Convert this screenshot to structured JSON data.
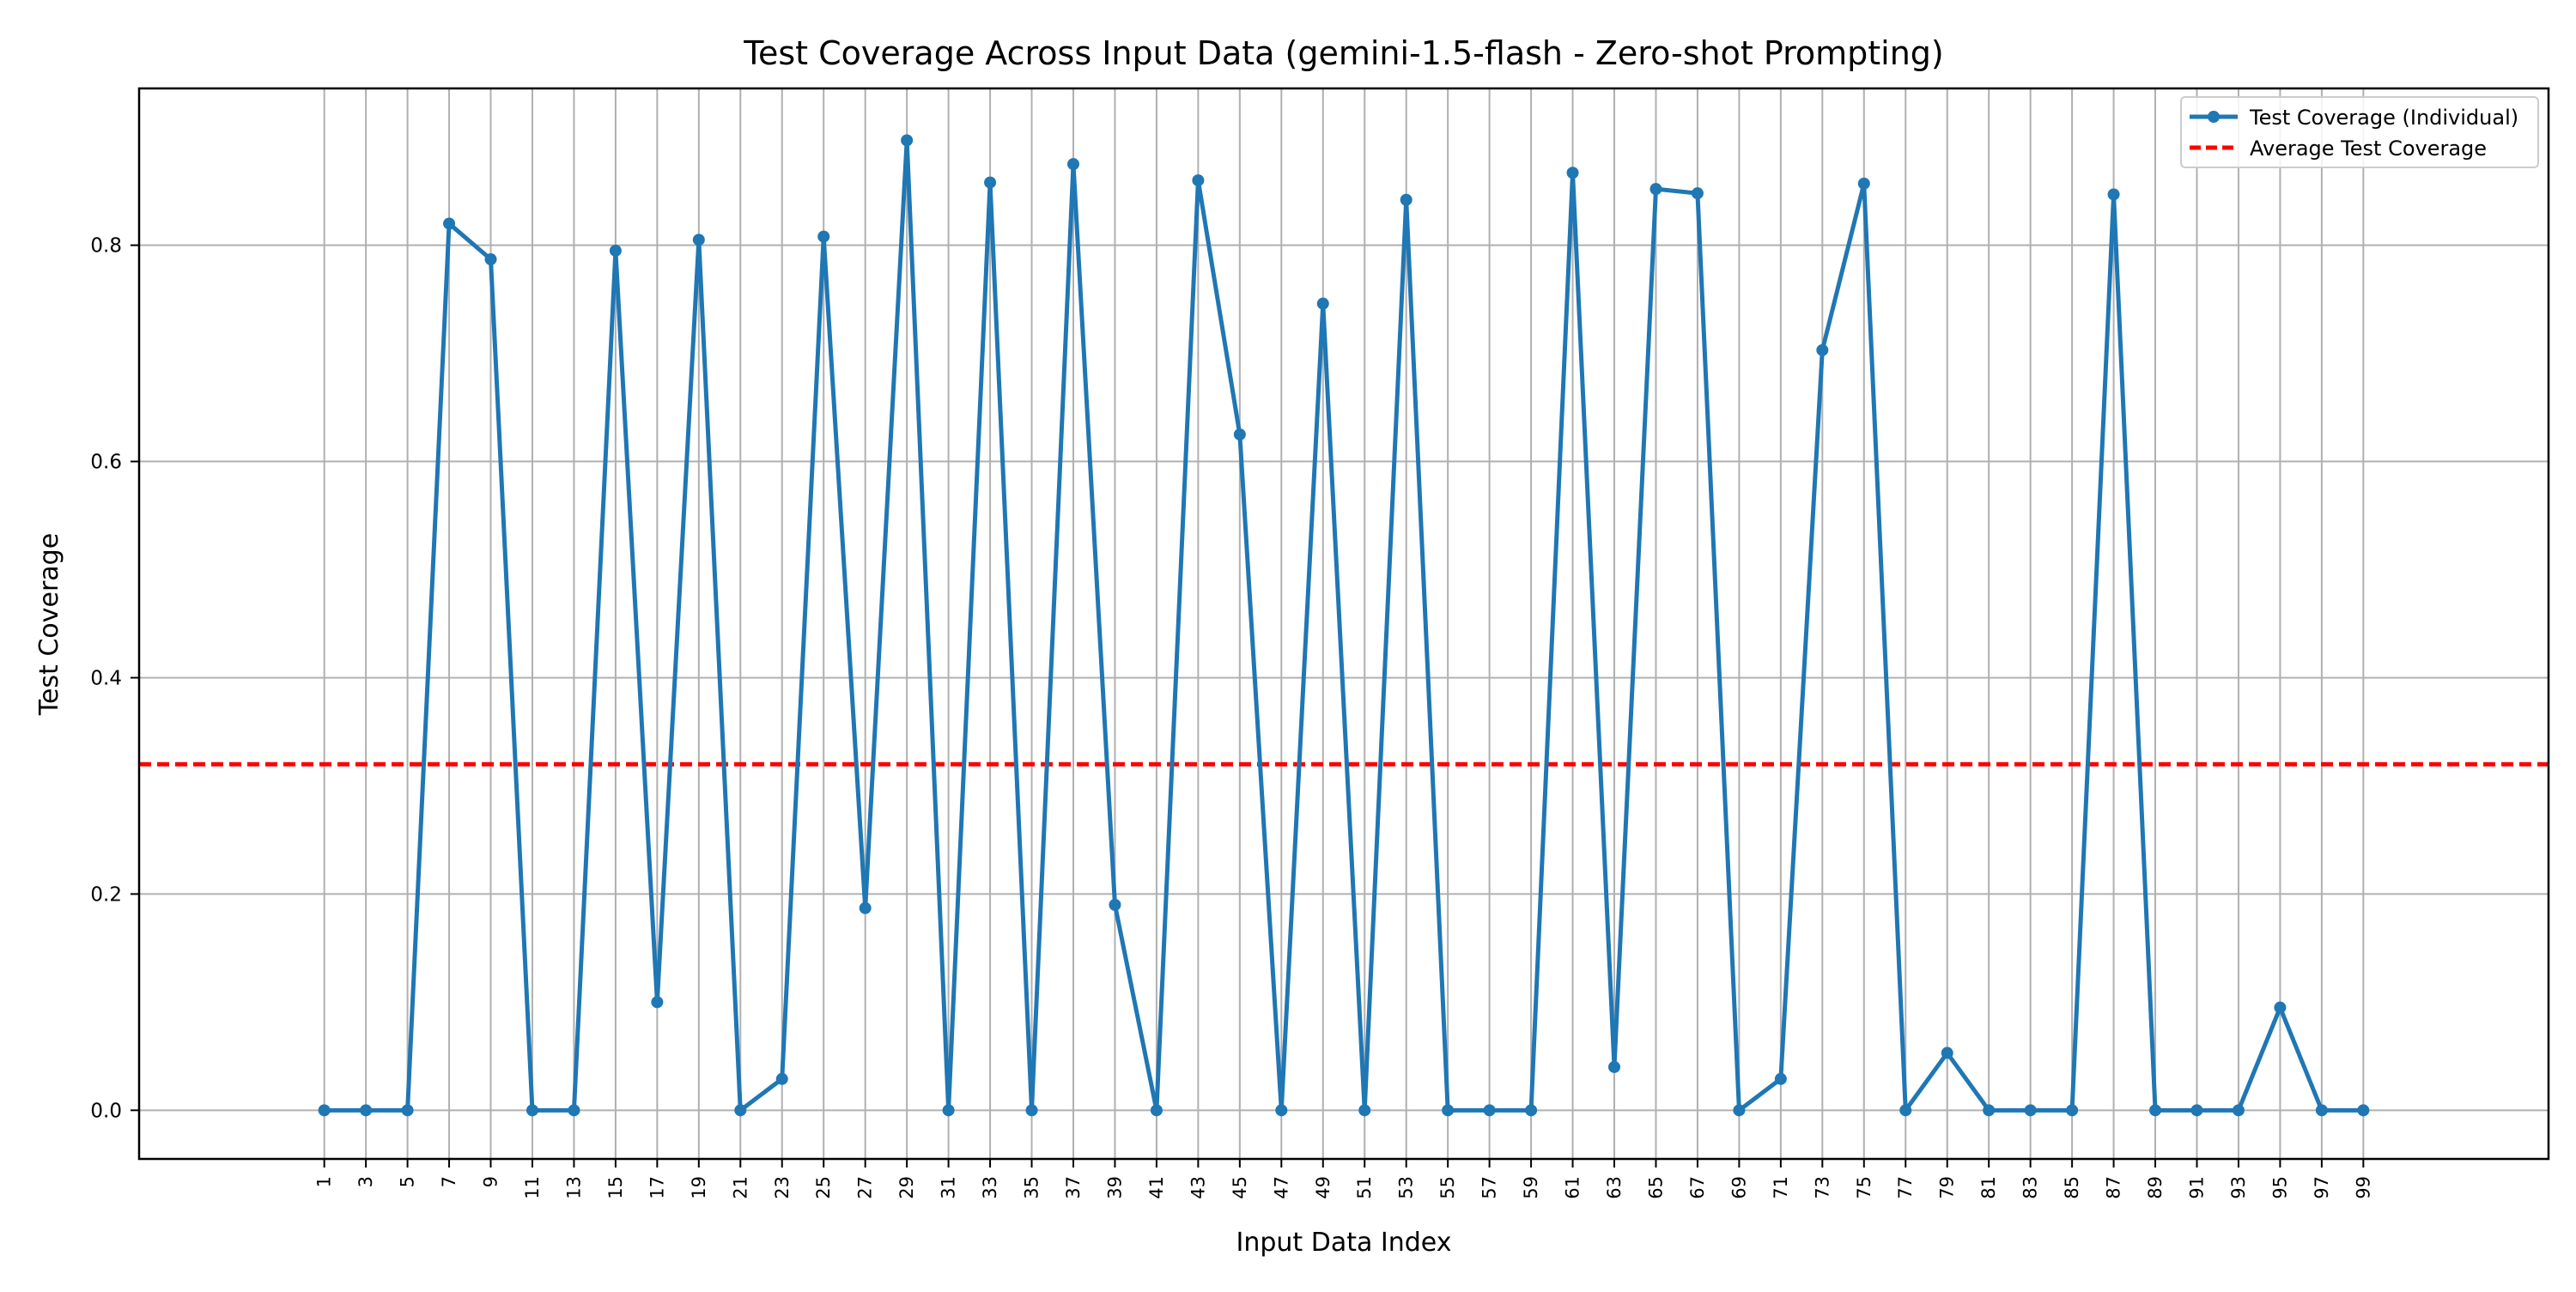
{
  "chart_data": {
    "type": "line",
    "title": "Test Coverage Across Input Data (gemini-1.5-flash - Zero-shot Prompting)",
    "xlabel": "Input Data Index",
    "ylabel": "Test Coverage",
    "x": [
      1,
      3,
      5,
      7,
      9,
      11,
      13,
      15,
      17,
      19,
      21,
      23,
      25,
      27,
      29,
      31,
      33,
      35,
      37,
      39,
      41,
      43,
      45,
      47,
      49,
      51,
      53,
      55,
      57,
      59,
      61,
      63,
      65,
      67,
      69,
      71,
      73,
      75,
      77,
      79,
      81,
      83,
      85,
      87,
      89,
      91,
      93,
      95,
      97,
      99
    ],
    "series": [
      {
        "name": "Test Coverage (Individual)",
        "color": "#1f77b4",
        "values": [
          0.0,
          0.0,
          0.0,
          0.82,
          0.787,
          0.0,
          0.0,
          0.795,
          0.1,
          0.805,
          0.0,
          0.029,
          0.808,
          0.187,
          0.897,
          0.0,
          0.858,
          0.0,
          0.875,
          0.19,
          0.0,
          0.86,
          0.625,
          0.0,
          0.746,
          0.0,
          0.842,
          0.0,
          0.0,
          0.0,
          0.867,
          0.04,
          0.852,
          0.848,
          0.0,
          0.029,
          0.703,
          0.857,
          0.0,
          0.053,
          0.0,
          0.0,
          0.0,
          0.847,
          0.0,
          0.0,
          0.0,
          0.095,
          0.0,
          0.0
        ]
      }
    ],
    "average": {
      "name": "Average Test Coverage",
      "value": 0.32,
      "color": "#ff0000"
    },
    "xlim": [
      -7.9,
      107.9
    ],
    "ylim": [
      -0.045,
      0.945
    ],
    "yticks": [
      0.0,
      0.2,
      0.4,
      0.6,
      0.8
    ],
    "ytick_labels": [
      "0.0",
      "0.2",
      "0.4",
      "0.6",
      "0.8"
    ],
    "grid": true,
    "legend_position": "top-right"
  }
}
